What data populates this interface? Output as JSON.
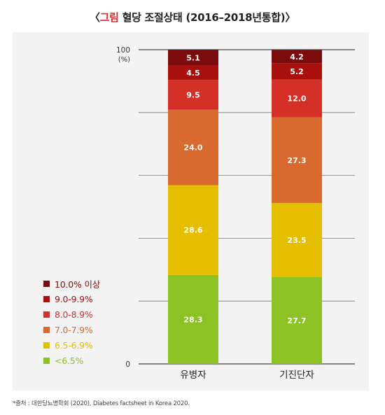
{
  "title": {
    "prefix": "〈",
    "highlight": "그림",
    "rest": " 혈당 조절상태 (2016–2018년통합)〉"
  },
  "footnote": "*출처 : 대한당뇨병학회 (2020), Diabetes factsheet in Korea 2020.",
  "chart_data": {
    "type": "bar",
    "stacked": true,
    "categories": [
      "유병자",
      "기진단자"
    ],
    "ylim": [
      0,
      100
    ],
    "y_ticks": [
      {
        "value": 100,
        "label": "100"
      },
      {
        "value": 0,
        "label": "0"
      }
    ],
    "y_unit": "(%)",
    "grid": true,
    "legend_position": "bottom-left",
    "series": [
      {
        "name": "<6.5%",
        "color": "#8cc224",
        "values": [
          28.3,
          27.7
        ],
        "labels": [
          "28.3",
          "27.7"
        ]
      },
      {
        "name": "6.5-6.9%",
        "color": "#e6be00",
        "values": [
          28.6,
          23.5
        ],
        "labels": [
          "28.6",
          "23.5"
        ]
      },
      {
        "name": "7.0-7.9%",
        "color": "#d8692f",
        "values": [
          24.0,
          27.3
        ],
        "labels": [
          "24.0",
          "27.3"
        ]
      },
      {
        "name": "8.0-8.9%",
        "color": "#d53027",
        "values": [
          9.5,
          12.0
        ],
        "labels": [
          "9.5",
          "12.0"
        ]
      },
      {
        "name": "9.0-9.9%",
        "color": "#a8100d",
        "values": [
          4.5,
          5.2
        ],
        "labels": [
          "4.5",
          "5.2"
        ]
      },
      {
        "name": "10.0% 이상",
        "color": "#7b0b0c",
        "values": [
          5.1,
          4.2
        ],
        "labels": [
          "5.1",
          "4.2"
        ]
      }
    ],
    "legend_order": [
      "10.0% 이상",
      "9.0-9.9%",
      "8.0-8.9%",
      "7.0-7.9%",
      "6.5-6.9%",
      "<6.5%"
    ]
  }
}
